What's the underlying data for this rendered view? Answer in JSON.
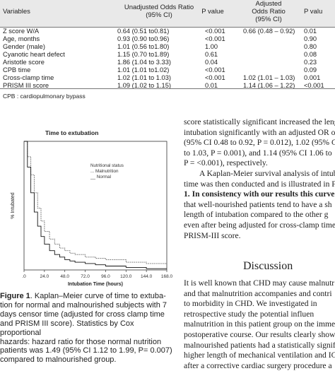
{
  "table": {
    "headers": {
      "variables": "Variables",
      "unadjusted": [
        "Unadjusted Odds Ratio",
        "(95% CI)"
      ],
      "pvalue1": "P value",
      "adjusted": [
        "Adjusted",
        "Odds Ratio",
        "(95% CI)"
      ],
      "pvalue2": "P valu"
    },
    "rows": [
      {
        "variable": "Z score W/A",
        "unadj": "0.64 (0.51 to0.81)",
        "p1": "<0.001",
        "adj": "0.66 (0.48 – 0.92)",
        "p2": "0.01"
      },
      {
        "variable": "Age, months",
        "unadj": "0.93 (0.90 to0.96)",
        "p1": "<0.001",
        "adj": "",
        "p2": "0.90"
      },
      {
        "variable": "Gender (male)",
        "unadj": "1.01 (0.56 to1.80)",
        "p1": "1.00",
        "adj": "",
        "p2": "0.80"
      },
      {
        "variable": "Cyanotic heart defect",
        "unadj": "1.15 (0.70 to1.89)",
        "p1": "0.61",
        "adj": "",
        "p2": "0.08"
      },
      {
        "variable": "Aristotle score",
        "unadj": "1.86 (1.04 to 3.33)",
        "p1": "0.04",
        "adj": "",
        "p2": "0.23"
      },
      {
        "variable": "CPB time",
        "unadj": "1.01 (1.01 to1.02)",
        "p1": "<0.001",
        "adj": "",
        "p2": "0.09"
      },
      {
        "variable": "Cross-clamp time",
        "unadj": "1.02 (1.01 to 1.03)",
        "p1": "<0.001",
        "adj": "1.02 (1.01 – 1.03)",
        "p2": "0.001"
      },
      {
        "variable": "PRISM III score",
        "unadj": "1.09 (1.02 to 1.15)",
        "p1": "0.01",
        "adj": "1.14 (1.06 – 1.22)",
        "p2": "<0.001"
      }
    ],
    "footnote": "CPB : cardiopulmonary bypass"
  },
  "figure": {
    "title": "Time to extubation",
    "ylabel": "% Intubated",
    "xlabel": "Intubation Time (hours)",
    "legend": {
      "title": "Nutritional status",
      "malnutrition": "... Malnutrition",
      "normal": "__ Normal"
    }
  },
  "chart_data": {
    "type": "line",
    "title": "Time to extubation",
    "xlabel": "Intubation Time (hours)",
    "ylabel": "% Intubated",
    "xticks": [
      ".0",
      "24.0",
      "48.0",
      "72.0",
      "96.0",
      "120.0",
      "144.0",
      "168.0"
    ],
    "xlim": [
      0,
      168
    ],
    "ylim": [
      0,
      1
    ],
    "series": [
      {
        "name": "Malnutrition",
        "x": [
          0,
          4,
          8,
          12,
          16,
          20,
          24,
          30,
          36,
          42,
          48,
          54,
          60,
          72,
          84,
          96,
          120,
          144,
          168
        ],
        "y": [
          1.0,
          0.88,
          0.74,
          0.6,
          0.48,
          0.38,
          0.3,
          0.24,
          0.2,
          0.17,
          0.15,
          0.13,
          0.12,
          0.1,
          0.09,
          0.08,
          0.06,
          0.05,
          0.04
        ]
      },
      {
        "name": "Normal",
        "x": [
          0,
          4,
          8,
          12,
          16,
          20,
          24,
          30,
          36,
          42,
          48,
          54,
          60,
          72,
          84,
          96,
          120,
          144,
          168
        ],
        "y": [
          1.0,
          0.8,
          0.6,
          0.45,
          0.34,
          0.26,
          0.2,
          0.15,
          0.12,
          0.1,
          0.08,
          0.07,
          0.06,
          0.05,
          0.04,
          0.03,
          0.02,
          0.01,
          0.01
        ]
      }
    ]
  },
  "caption": {
    "label": "Figure 1",
    "lines": [
      ". Kaplan–Meier curve of time to extuba-",
      "tion for normal and malnourished subjects with 7",
      "days censor time (adjusted for cross clamp time",
      "and PRISM III score). Statistics by Cox proportional",
      "hazards: hazard ratio for those normal nutrition",
      "patients was 1.49 (95% CI 1.12 to 1.99, P= 0.007)",
      "compared to malnourished group."
    ]
  },
  "right_column": {
    "para1": [
      "score statistically significant increased the leng",
      "intubation significantly with an adjusted OR of",
      "(95% CI 0.48 to 0.92, P = 0.012), 1.02 (95% CI",
      "to 1.03, P = 0.001), and 1.14 (95% CI 1.06 to",
      "P = <0.001), respectively."
    ],
    "para2": [
      "A Kaplan-Meier survival analysis of intub",
      "time was then conducted and is illustrated in F",
      "1. In consistency with our results this curve de",
      "that well-nourished patients tend to have a sh",
      "length of intubation compared to the other g",
      "even after being adjusted for cross-clamp time",
      "PRISM-III score."
    ],
    "heading": "Discussion",
    "para3": [
      "It is well known that CHD may cause malnutr",
      "and that malnutrition accompanies and contri",
      "to morbidity in CHD. We investigated in",
      "retrospective study the potential influen",
      "malnutrition in this patient group on the imme",
      "postoperative course. Our results clearly showed",
      "malnourished patients had a statistically signif",
      "higher length of mechanical ventilation and ICU",
      "after a corrective cardiac surgery procedure a"
    ]
  }
}
